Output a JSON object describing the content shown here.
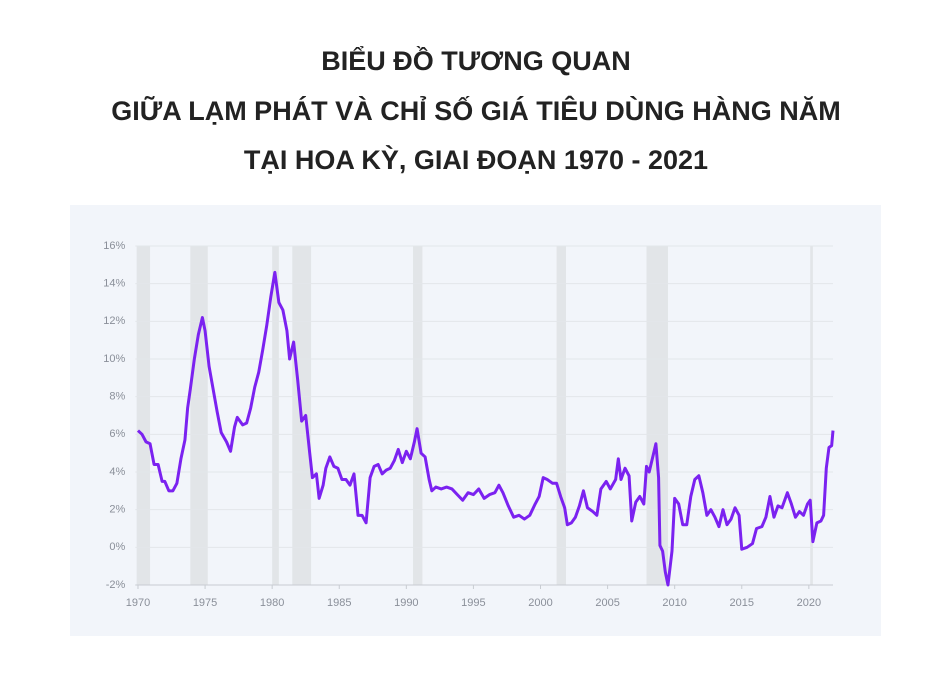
{
  "chart_data": {
    "type": "line",
    "title": [
      "BIỂU ĐỒ TƯƠNG QUAN",
      "GIỮA LẠM PHÁT VÀ CHỈ SỐ GIÁ TIÊU DÙNG HÀNG NĂM",
      "TẠI HOA KỲ, GIAI ĐOẠN 1970 - 2021"
    ],
    "color": "#7b22f0",
    "xlim": [
      1969.8,
      2021.8
    ],
    "xticks": [
      1970,
      1975,
      1980,
      1985,
      1990,
      1995,
      2000,
      2005,
      2010,
      2015,
      2020
    ],
    "ylim": [
      -2,
      16
    ],
    "yticks": [
      {
        "value": -2,
        "label": "-2%"
      },
      {
        "value": 0,
        "label": "0%"
      },
      {
        "value": 2,
        "label": "2%"
      },
      {
        "value": 4,
        "label": "4%"
      },
      {
        "value": 6,
        "label": "6%"
      },
      {
        "value": 8,
        "label": "8%"
      },
      {
        "value": 10,
        "label": "10%"
      },
      {
        "value": 12,
        "label": "12%"
      },
      {
        "value": 14,
        "label": "14%"
      },
      {
        "value": 16,
        "label": "16%"
      }
    ],
    "grid": true,
    "shaded_periods": [
      [
        1969.9,
        1970.9
      ],
      [
        1973.9,
        1975.2
      ],
      [
        1980.0,
        1980.5
      ],
      [
        1981.5,
        1982.9
      ],
      [
        1990.5,
        1991.2
      ],
      [
        2001.2,
        2001.9
      ],
      [
        2007.9,
        2009.5
      ],
      [
        2020.1,
        2020.3
      ]
    ],
    "x": [
      1970.0,
      1970.3,
      1970.6,
      1970.9,
      1971.2,
      1971.5,
      1971.8,
      1972.0,
      1972.3,
      1972.6,
      1972.9,
      1973.2,
      1973.5,
      1973.7,
      1973.9,
      1974.2,
      1974.5,
      1974.8,
      1975.0,
      1975.3,
      1975.6,
      1975.9,
      1976.2,
      1976.6,
      1976.9,
      1977.2,
      1977.4,
      1977.8,
      1978.1,
      1978.4,
      1978.7,
      1979.0,
      1979.3,
      1979.6,
      1979.9,
      1980.2,
      1980.5,
      1980.8,
      1981.1,
      1981.3,
      1981.6,
      1981.9,
      1982.2,
      1982.5,
      1982.8,
      1983.0,
      1983.3,
      1983.5,
      1983.8,
      1984.0,
      1984.3,
      1984.6,
      1984.9,
      1985.2,
      1985.5,
      1985.8,
      1986.1,
      1986.4,
      1986.7,
      1987.0,
      1987.3,
      1987.6,
      1987.9,
      1988.2,
      1988.5,
      1988.8,
      1989.1,
      1989.4,
      1989.7,
      1990.0,
      1990.3,
      1990.6,
      1990.8,
      1991.1,
      1991.4,
      1991.7,
      1991.9,
      1992.2,
      1992.6,
      1993.0,
      1993.4,
      1993.8,
      1994.2,
      1994.6,
      1995.0,
      1995.4,
      1995.8,
      1996.2,
      1996.6,
      1996.9,
      1997.2,
      1997.6,
      1998.0,
      1998.4,
      1998.8,
      1999.2,
      1999.6,
      1999.9,
      2000.2,
      2000.5,
      2000.9,
      2001.2,
      2001.5,
      2001.8,
      2002.0,
      2002.3,
      2002.6,
      2002.9,
      2003.2,
      2003.5,
      2003.9,
      2004.2,
      2004.5,
      2004.9,
      2005.2,
      2005.6,
      2005.8,
      2006.0,
      2006.3,
      2006.6,
      2006.8,
      2007.1,
      2007.4,
      2007.7,
      2007.9,
      2008.1,
      2008.4,
      2008.6,
      2008.8,
      2008.9,
      2009.1,
      2009.3,
      2009.5,
      2009.8,
      2010.0,
      2010.3,
      2010.6,
      2010.9,
      2011.2,
      2011.5,
      2011.8,
      2012.1,
      2012.4,
      2012.7,
      2013.0,
      2013.3,
      2013.6,
      2013.9,
      2014.2,
      2014.5,
      2014.8,
      2015.0,
      2015.4,
      2015.8,
      2016.1,
      2016.5,
      2016.8,
      2017.1,
      2017.4,
      2017.7,
      2018.0,
      2018.4,
      2018.7,
      2019.0,
      2019.3,
      2019.6,
      2019.9,
      2020.1,
      2020.3,
      2020.6,
      2020.9,
      2021.1,
      2021.3,
      2021.5,
      2021.7,
      2021.8
    ],
    "values": [
      6.2,
      6.0,
      5.6,
      5.5,
      4.4,
      4.4,
      3.5,
      3.5,
      3.0,
      3.0,
      3.4,
      4.7,
      5.7,
      7.4,
      8.4,
      10.0,
      11.3,
      12.2,
      11.5,
      9.6,
      8.4,
      7.2,
      6.1,
      5.6,
      5.1,
      6.4,
      6.9,
      6.5,
      6.6,
      7.4,
      8.5,
      9.3,
      10.5,
      11.8,
      13.3,
      14.6,
      13.0,
      12.6,
      11.5,
      10.0,
      10.9,
      8.9,
      6.7,
      7.0,
      5.0,
      3.7,
      3.9,
      2.6,
      3.3,
      4.2,
      4.8,
      4.3,
      4.2,
      3.6,
      3.6,
      3.3,
      3.9,
      1.7,
      1.7,
      1.3,
      3.7,
      4.3,
      4.4,
      3.9,
      4.1,
      4.2,
      4.6,
      5.2,
      4.5,
      5.1,
      4.7,
      5.6,
      6.3,
      5.0,
      4.8,
      3.6,
      3.0,
      3.2,
      3.1,
      3.2,
      3.1,
      2.8,
      2.5,
      2.9,
      2.8,
      3.1,
      2.6,
      2.8,
      2.9,
      3.3,
      2.9,
      2.2,
      1.6,
      1.7,
      1.5,
      1.7,
      2.3,
      2.7,
      3.7,
      3.6,
      3.4,
      3.4,
      2.7,
      2.1,
      1.2,
      1.3,
      1.6,
      2.2,
      3.0,
      2.1,
      1.9,
      1.7,
      3.1,
      3.5,
      3.1,
      3.6,
      4.7,
      3.6,
      4.2,
      3.8,
      1.4,
      2.4,
      2.7,
      2.3,
      4.3,
      4.0,
      4.9,
      5.5,
      3.7,
      0.1,
      -0.2,
      -1.3,
      -2.0,
      -0.2,
      2.6,
      2.3,
      1.2,
      1.2,
      2.7,
      3.6,
      3.8,
      2.9,
      1.7,
      2.0,
      1.6,
      1.1,
      2.0,
      1.2,
      1.5,
      2.1,
      1.7,
      -0.1,
      0.0,
      0.2,
      1.0,
      1.1,
      1.6,
      2.7,
      1.6,
      2.2,
      2.1,
      2.9,
      2.3,
      1.6,
      1.9,
      1.7,
      2.3,
      2.5,
      0.3,
      1.3,
      1.4,
      1.7,
      4.2,
      5.3,
      5.4,
      6.2
    ]
  }
}
